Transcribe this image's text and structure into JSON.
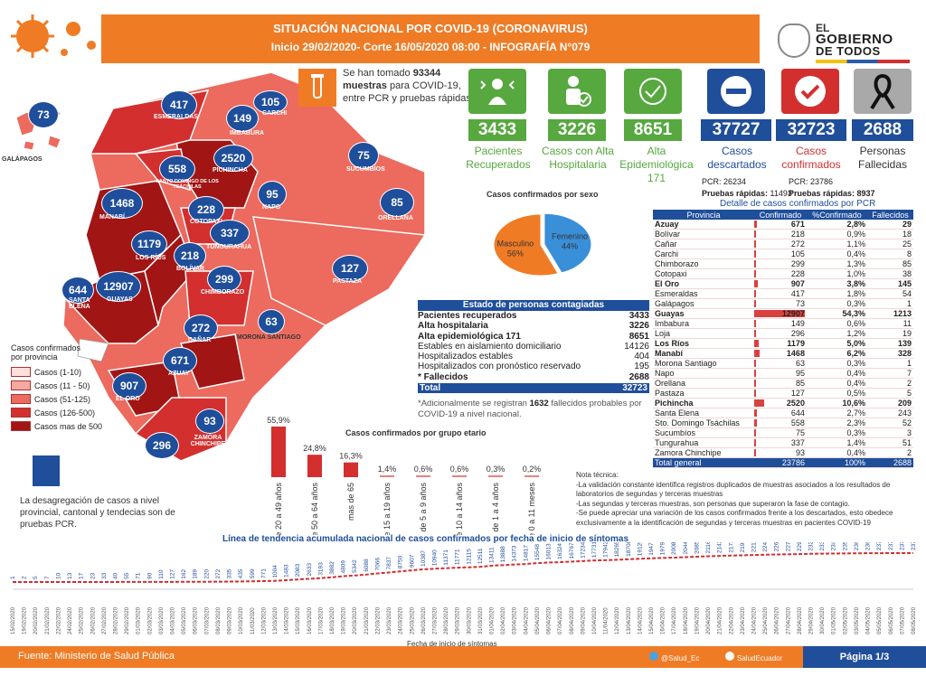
{
  "header": {
    "title": "SITUACIÓN NACIONAL POR  COVID-19 (CORONAVIRUS)",
    "subtitle": "Inicio 29/02/2020- Corte 16/05/2020 08:00  - INFOGRAFÍA N°079"
  },
  "gov": {
    "line1": "EL",
    "line2": "GOBIERNO",
    "line3": "DE TODOS"
  },
  "samples": {
    "pre": "Se han tomado",
    "value": "93344",
    "bold2": "muestras",
    "post": "para COVID-19, entre PCR y pruebas rápidas"
  },
  "stats": [
    {
      "value": "3433",
      "label": "Pacientes Recuperados",
      "color": "#56a83f"
    },
    {
      "value": "3226",
      "label": "Casos con Alta Hospitalaria",
      "color": "#56a83f"
    },
    {
      "value": "8651",
      "label": "Alta Epidemiológica",
      "sub": "171",
      "color": "#56a83f"
    },
    {
      "value": "37727",
      "label": "Casos descartados",
      "color": "#1f4e9b"
    },
    {
      "value": "32723",
      "label": "Casos confirmados",
      "color": "#d32f2f"
    },
    {
      "value": "2688",
      "label": "Personas Fallecidas",
      "color": "#1f4e9b"
    }
  ],
  "pcr": {
    "descartados_pcr": "PCR: 26234",
    "descartados_rapidas_lbl": "Pruebas rápidas:",
    "descartados_rapidas": "11493",
    "confirmados_pcr": "PCR: 23786",
    "confirmados_rapidas": "Pruebas rápidas: 8937"
  },
  "sex_chart": {
    "title": "Casos confirmados por sexo",
    "slices": [
      {
        "name": "Masculino",
        "pct": 56,
        "label": "56%",
        "color": "#f07b25"
      },
      {
        "name": "Femenino",
        "pct": 44,
        "label": "44%",
        "color": "#3a8fd9"
      }
    ]
  },
  "estado": {
    "title": "Estado de personas contagiadas",
    "rows": [
      {
        "label": "Pacientes recuperados",
        "value": "3433",
        "bold": true
      },
      {
        "label": "Alta hospitalaria",
        "value": "3226",
        "bold": true
      },
      {
        "label": "Alta epidemiológica 171",
        "value": "8651",
        "bold": true
      },
      {
        "label": "Estables en aislamiento domiciliario",
        "value": "14126",
        "bold": false
      },
      {
        "label": "Hospitalizados estables",
        "value": "404",
        "bold": false
      },
      {
        "label": "Hospitalizados con pronóstico reservado",
        "value": "195",
        "bold": false
      },
      {
        "label": "*  Fallecidos",
        "value": "2688",
        "bold": true
      }
    ],
    "total_label": "Total",
    "total_value": "32723",
    "note_pre": "*Adicionalmente se registran",
    "note_val": "1632",
    "note_post": "fallecidos probables por COVID-19 a nivel nacional."
  },
  "legend": {
    "title": "Casos confirmados por provincia",
    "items": [
      {
        "label": "Casos (1-10)",
        "color": "#fde0dc"
      },
      {
        "label": "Casos (11 - 50)",
        "color": "#f6a9a0"
      },
      {
        "label": "Casos (51-125)",
        "color": "#ec6a5e"
      },
      {
        "label": "Casos (126-500)",
        "color": "#d32f2f"
      },
      {
        "label": "Casos mas de 500",
        "color": "#a11515"
      }
    ]
  },
  "map": {
    "bubbles": [
      {
        "v": "73",
        "name": "GALÁPAGOS"
      },
      {
        "v": "417",
        "name": "ESMERALDAS"
      },
      {
        "v": "105",
        "name": "CARCHI"
      },
      {
        "v": "149",
        "name": "IMBABURA"
      },
      {
        "v": "2520",
        "name": "PICHINCHA"
      },
      {
        "v": "558",
        "name": "SANTO DOMINGO DE LOS TSÁCHILAS"
      },
      {
        "v": "75",
        "name": "SUCUMBÍOS"
      },
      {
        "v": "1468",
        "name": "MANABÍ"
      },
      {
        "v": "228",
        "name": "COTOPAXI"
      },
      {
        "v": "95",
        "name": "NAPO"
      },
      {
        "v": "85",
        "name": "ORELLANA"
      },
      {
        "v": "337",
        "name": "TUNGURAHUA"
      },
      {
        "v": "1179",
        "name": "LOS RÍOS"
      },
      {
        "v": "218",
        "name": "BOLÍVAR"
      },
      {
        "v": "127",
        "name": "PASTAZA"
      },
      {
        "v": "644",
        "name": "SANTA ELENA"
      },
      {
        "v": "12907",
        "name": "GUAYAS"
      },
      {
        "v": "299",
        "name": "CHIMBORAZO"
      },
      {
        "v": "272",
        "name": "CAÑAR"
      },
      {
        "v": "63",
        "name": "MORONA SANTIAGO"
      },
      {
        "v": "671",
        "name": "AZUAY"
      },
      {
        "v": "907",
        "name": "EL ORO"
      },
      {
        "v": "93",
        "name": "ZAMORA CHINCHIPE"
      },
      {
        "v": "296",
        "name": "LOJA"
      }
    ]
  },
  "age_chart": {
    "title": "Casos confirmados por grupo etario",
    "categories": [
      "de 20 a 49 años",
      "de 50 a 64 años",
      "mas de 65",
      "de 15 a 19 años",
      "de 5 a 9 años",
      "de 10 a 14 años",
      "de 1 a 4 años",
      "de 0 a 11 meses"
    ],
    "values": [
      55.9,
      24.8,
      16.3,
      1.4,
      0.6,
      0.6,
      0.3,
      0.2
    ],
    "labels": [
      "55,9%",
      "24,8%",
      "16,3%",
      "1,4%",
      "0,6%",
      "0,6%",
      "0,3%",
      "0,2%"
    ]
  },
  "prov_table": {
    "title": "Detalle de casos confirmados por PCR",
    "headers": [
      "Provincia",
      "Confirmado",
      "%Confirmado",
      "Fallecidos"
    ],
    "rows": [
      {
        "p": "Azuay",
        "c": "671",
        "pc": "2,8%",
        "f": "29",
        "b": true
      },
      {
        "p": "Bolívar",
        "c": "218",
        "pc": "0,9%",
        "f": "18",
        "b": false
      },
      {
        "p": "Cañar",
        "c": "272",
        "pc": "1,1%",
        "f": "25",
        "b": false
      },
      {
        "p": "Carchi",
        "c": "105",
        "pc": "0,4%",
        "f": "8",
        "b": false
      },
      {
        "p": "Chimborazo",
        "c": "299",
        "pc": "1,3%",
        "f": "85",
        "b": false
      },
      {
        "p": "Cotopaxi",
        "c": "228",
        "pc": "1,0%",
        "f": "38",
        "b": false
      },
      {
        "p": "El Oro",
        "c": "907",
        "pc": "3,8%",
        "f": "145",
        "b": true
      },
      {
        "p": "Esmeraldas",
        "c": "417",
        "pc": "1,8%",
        "f": "54",
        "b": false
      },
      {
        "p": "Galápagos",
        "c": "73",
        "pc": "0,3%",
        "f": "1",
        "b": false
      },
      {
        "p": "Guayas",
        "c": "12907",
        "pc": "54,3%",
        "f": "1213",
        "b": true
      },
      {
        "p": "Imbabura",
        "c": "149",
        "pc": "0,6%",
        "f": "11",
        "b": false
      },
      {
        "p": "Loja",
        "c": "296",
        "pc": "1,2%",
        "f": "19",
        "b": false
      },
      {
        "p": "Los Ríos",
        "c": "1179",
        "pc": "5,0%",
        "f": "139",
        "b": true
      },
      {
        "p": "Manabí",
        "c": "1468",
        "pc": "6,2%",
        "f": "328",
        "b": true
      },
      {
        "p": "Morona Santiago",
        "c": "63",
        "pc": "0,3%",
        "f": "1",
        "b": false
      },
      {
        "p": "Napo",
        "c": "95",
        "pc": "0,4%",
        "f": "7",
        "b": false
      },
      {
        "p": "Orellana",
        "c": "85",
        "pc": "0,4%",
        "f": "2",
        "b": false
      },
      {
        "p": "Pastaza",
        "c": "127",
        "pc": "0,5%",
        "f": "5",
        "b": false
      },
      {
        "p": "Pichincha",
        "c": "2520",
        "pc": "10,6%",
        "f": "209",
        "b": true
      },
      {
        "p": "Santa Elena",
        "c": "644",
        "pc": "2,7%",
        "f": "243",
        "b": false
      },
      {
        "p": "Sto. Domingo Tsáchilas",
        "c": "558",
        "pc": "2,3%",
        "f": "52",
        "b": false
      },
      {
        "p": "Sucumbíos",
        "c": "75",
        "pc": "0,3%",
        "f": "3",
        "b": false
      },
      {
        "p": "Tungurahua",
        "c": "337",
        "pc": "1,4%",
        "f": "51",
        "b": false
      },
      {
        "p": "Zamora Chinchipe",
        "c": "93",
        "pc": "0,4%",
        "f": "2",
        "b": false
      }
    ],
    "total": {
      "p": "Total general",
      "c": "23786",
      "pc": "100%",
      "f": "2688"
    }
  },
  "tech_note": {
    "title": "Nota técnica:",
    "lines": [
      "-La validación constante identifica registros duplicados de muestras asociados a los resultados de laboratorios de segundas y terceras muestras",
      "-Las segundas y terceras muestras, son personas que superaron la fase de contagio.",
      "-Se puede apreciar una variación de los casos confirmados frente a los descartados, esto obedece exclusivamente a la identificación de segundas y terceras muestras en pacientes COVID-19"
    ]
  },
  "disagg": "La desagregación de casos a nivel provincial, cantonal y tendecias son de pruebas PCR.",
  "trend": {
    "title": "Línea de tendencia acumulada nacional de casos confirmados por fecha de inicio de síntomas",
    "xlabel": "Fecha de inicio de síntomas",
    "values": [
      1,
      2,
      5,
      7,
      10,
      13,
      17,
      23,
      33,
      40,
      55,
      71,
      90,
      110,
      127,
      162,
      189,
      220,
      272,
      335,
      435,
      599,
      771,
      1004,
      1483,
      2083,
      2633,
      3193,
      3882,
      4809,
      5342,
      6088,
      7066,
      7837,
      8750,
      9607,
      10387,
      10940,
      11371,
      11771,
      12115,
      12511,
      13411,
      13888,
      14373,
      14817,
      15548,
      16013,
      16324,
      16767,
      17234,
      17731,
      17942,
      18265,
      18708,
      19126,
      19478,
      19797,
      20083,
      20445,
      20857,
      21164,
      21436,
      21727,
      21968,
      22185,
      22455,
      22650,
      22795,
      22984,
      23222,
      23342,
      23421,
      23531,
      23612,
      23669,
      23715,
      23768,
      23777,
      23786
    ],
    "labels_shown": [
      "1",
      "2",
      "5",
      "7",
      "10",
      "13",
      "17",
      "23",
      "33",
      "40",
      "55",
      "71",
      "90",
      "110",
      "127",
      "162",
      "189",
      "220",
      "272",
      "335",
      "435",
      "599",
      "771",
      "1004",
      "1483",
      "2083",
      "2633",
      "3193",
      "3882",
      "4809",
      "5342",
      "6088",
      "7066",
      "7837",
      "8750",
      "9607",
      "10387",
      "10940",
      "11371",
      "11771",
      "12115",
      "12511",
      "13411",
      "13888",
      "14373",
      "14817",
      "15548",
      "16013",
      "16324",
      "16767",
      "17234",
      "17731",
      "17942",
      "18265",
      "18708",
      "19126",
      "19478",
      "19797",
      "20083",
      "20445",
      "20857",
      "21164",
      "21436",
      "21727",
      "21968",
      "22185",
      "22455",
      "22650",
      "22795",
      "22984",
      "23222",
      "23342",
      "23421",
      "23531",
      "23612",
      "23669",
      "23715",
      "23768",
      "23777",
      "23786"
    ],
    "dates": [
      "15/02/2020",
      "19/02/2020",
      "20/02/2020",
      "21/02/2020",
      "22/02/2020",
      "24/02/2020",
      "25/02/2020",
      "26/02/2020",
      "27/02/2020",
      "28/02/2020",
      "29/02/2020",
      "01/03/2020",
      "02/03/2020",
      "03/03/2020",
      "04/03/2020",
      "05/03/2020",
      "06/03/2020",
      "07/03/2020",
      "08/03/2020",
      "09/03/2020",
      "10/03/2020",
      "11/03/2020",
      "12/03/2020",
      "13/03/2020",
      "14/03/2020",
      "15/03/2020",
      "16/03/2020",
      "17/03/2020",
      "18/03/2020",
      "19/03/2020",
      "20/03/2020",
      "21/03/2020",
      "22/03/2020",
      "23/03/2020",
      "24/03/2020",
      "25/03/2020",
      "26/03/2020",
      "27/03/2020",
      "28/03/2020",
      "29/03/2020",
      "30/03/2020",
      "31/03/2020",
      "01/04/2020",
      "02/04/2020",
      "03/04/2020",
      "04/04/2020",
      "05/04/2020",
      "06/04/2020",
      "07/04/2020",
      "08/04/2020",
      "09/04/2020",
      "10/04/2020",
      "11/04/2020",
      "12/04/2020",
      "13/04/2020",
      "14/04/2020",
      "15/04/2020",
      "16/04/2020",
      "17/04/2020",
      "18/04/2020",
      "19/04/2020",
      "20/04/2020",
      "21/04/2020",
      "22/04/2020",
      "23/04/2020",
      "24/04/2020",
      "25/04/2020",
      "26/04/2020",
      "27/04/2020",
      "28/04/2020",
      "29/04/2020",
      "30/04/2020",
      "01/05/2020",
      "02/05/2020",
      "03/05/2020",
      "04/05/2020",
      "05/05/2020",
      "06/05/2020",
      "07/05/2020",
      "08/05/2020"
    ]
  },
  "footer": {
    "source": "Fuente: Ministerio de Salud Pública",
    "twitter": "@Salud_Ec",
    "facebook": "SaludEcuador",
    "page": "Página 1/3"
  },
  "chart_data": [
    {
      "type": "pie",
      "title": "Casos confirmados por sexo",
      "categories": [
        "Masculino",
        "Femenino"
      ],
      "values": [
        56,
        44
      ]
    },
    {
      "type": "bar",
      "title": "Casos confirmados por grupo etario",
      "categories": [
        "de 20 a 49 años",
        "de 50 a 64 años",
        "mas de 65",
        "de 15 a 19 años",
        "de 5 a 9 años",
        "de 10 a 14 años",
        "de 1 a 4 años",
        "de 0 a 11 meses"
      ],
      "values": [
        55.9,
        24.8,
        16.3,
        1.4,
        0.6,
        0.6,
        0.3,
        0.2
      ]
    },
    {
      "type": "line",
      "title": "Línea de tendencia acumulada nacional de casos confirmados por fecha de inicio de síntomas",
      "xlabel": "Fecha de inicio de síntomas",
      "values": [
        1,
        2,
        5,
        7,
        10,
        13,
        17,
        23,
        33,
        40,
        55,
        71,
        90,
        110,
        127,
        162,
        189,
        220,
        272,
        335,
        435,
        599,
        771,
        1004,
        1483,
        2083,
        2633,
        3193,
        3882,
        4809,
        5342,
        6088,
        7066,
        7837,
        8750,
        9607,
        10387,
        10940,
        11371,
        11771,
        12115,
        12511,
        13411,
        13888,
        14373,
        14817,
        15548,
        16013,
        16324,
        16767,
        17234,
        17731,
        17942,
        18265,
        18708,
        19126,
        19478,
        19797,
        20083,
        20445,
        20857,
        21164,
        21436,
        21727,
        21968,
        22185,
        22455,
        22650,
        22795,
        22984,
        23222,
        23342,
        23421,
        23531,
        23612,
        23669,
        23715,
        23768,
        23777,
        23786
      ]
    }
  ]
}
